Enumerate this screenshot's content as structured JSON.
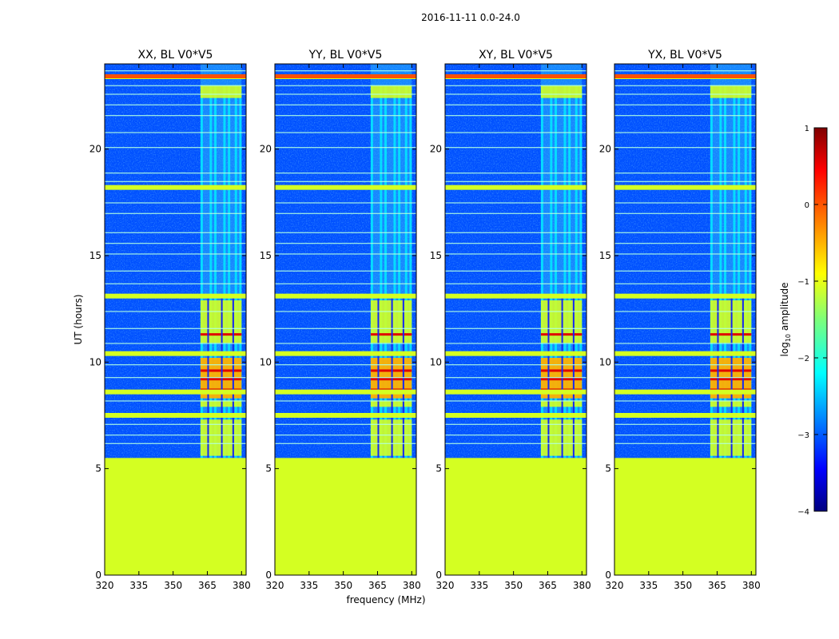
{
  "figure": {
    "suptitle": "2016-11-11 0.0-24.0"
  },
  "chart_data": {
    "type": "heatmap",
    "title": "2016-11-11 0.0-24.0",
    "xlabel": "frequency (MHz)",
    "ylabel": "UT (hours)",
    "xlim": [
      320,
      382
    ],
    "ylim": [
      0,
      24
    ],
    "xticks": [
      "320",
      "335",
      "350",
      "365",
      "380"
    ],
    "xtick_values": [
      320,
      335,
      350,
      365,
      380
    ],
    "yticks": [
      "0",
      "5",
      "10",
      "15",
      "20"
    ],
    "ytick_values": [
      0,
      5,
      10,
      15,
      20
    ],
    "panels": [
      {
        "title": "XX, BL V0*V5",
        "pol": "XX"
      },
      {
        "title": "YY, BL V0*V5",
        "pol": "YY"
      },
      {
        "title": "XY, BL V0*V5",
        "pol": "XY"
      },
      {
        "title": "YX, BL V0*V5",
        "pol": "YX"
      }
    ],
    "colorbar": {
      "label_main": "log",
      "label_sub": "10",
      "label_rest": " amplitude",
      "ticks": [
        "1",
        "0",
        "−1",
        "−2",
        "−3",
        "−4"
      ],
      "tick_values": [
        1,
        0,
        -1,
        -2,
        -3,
        -4
      ],
      "range": [
        -4,
        1
      ],
      "colormap": "jet"
    },
    "features": {
      "flagged_time_range_hours": [
        0,
        5.5
      ],
      "flagged_level": -1.2,
      "background_level": -3.2,
      "rfi_band_mhz": [
        362,
        380
      ],
      "rfi_channels_mhz": [
        362,
        366,
        368,
        372,
        374,
        377,
        379
      ],
      "strong_rfi_time_hours": [
        8.3,
        10.2
      ],
      "horizontal_flag_rows_hours": [
        23.4,
        18.2,
        13.1,
        10.4,
        8.6,
        7.5
      ]
    }
  },
  "colors": {
    "flag_green": "#99ff55",
    "background_blue": "#1428f0",
    "stripe_orange": "#ff7a00"
  }
}
